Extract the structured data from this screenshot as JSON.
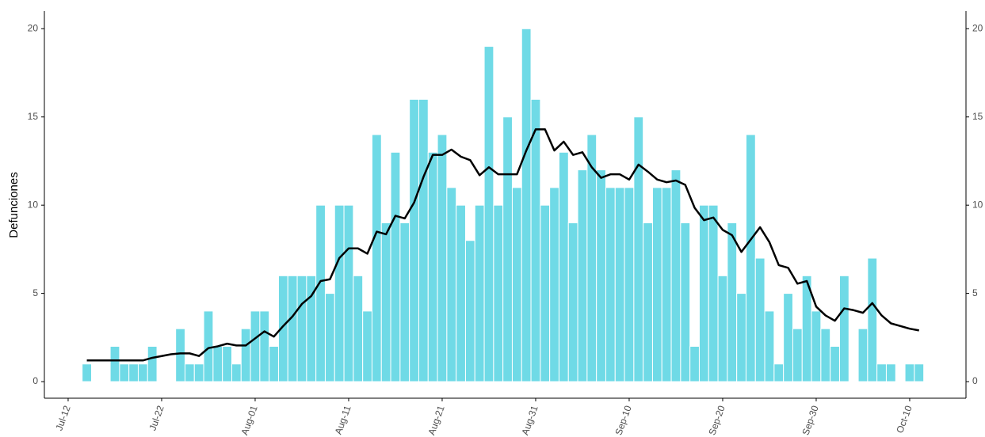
{
  "chart_data": {
    "type": "bar",
    "y_label": "Defunciones",
    "categories": [
      "Jul-12",
      null,
      null,
      null,
      null,
      null,
      null,
      null,
      null,
      null,
      "Jul-22",
      null,
      null,
      null,
      null,
      null,
      null,
      null,
      null,
      null,
      "Aug-01",
      null,
      null,
      null,
      null,
      null,
      null,
      null,
      null,
      null,
      "Aug-11",
      null,
      null,
      null,
      null,
      null,
      null,
      null,
      null,
      null,
      "Aug-21",
      null,
      null,
      null,
      null,
      null,
      null,
      null,
      null,
      null,
      "Aug-31",
      null,
      null,
      null,
      null,
      null,
      null,
      null,
      null,
      null,
      "Sep-10",
      null,
      null,
      null,
      null,
      null,
      null,
      null,
      null,
      null,
      "Sep-20",
      null,
      null,
      null,
      null,
      null,
      null,
      null,
      null,
      null,
      "Sep-30",
      null,
      null,
      null,
      null,
      null,
      null,
      null,
      null,
      null,
      "Oct-10",
      null
    ],
    "series": [
      {
        "type": "bar",
        "color": "#6fdae6",
        "values": [
          0,
          0,
          1,
          0,
          0,
          2,
          1,
          1,
          1,
          2,
          0,
          0,
          3,
          1,
          1,
          4,
          2,
          2,
          1,
          3,
          4,
          4,
          2,
          6,
          6,
          6,
          6,
          10,
          5,
          10,
          10,
          6,
          4,
          14,
          9,
          13,
          9,
          16,
          16,
          13,
          14,
          11,
          10,
          8,
          10,
          19,
          10,
          15,
          11,
          20,
          16,
          10,
          11,
          13,
          9,
          12,
          14,
          12,
          11,
          11,
          11,
          15,
          9,
          11,
          11,
          12,
          9,
          2,
          10,
          10,
          6,
          9,
          5,
          14,
          7,
          4,
          1,
          5,
          3,
          6,
          4,
          3,
          2,
          6,
          0,
          3,
          7,
          1,
          1,
          0,
          1,
          1
        ]
      },
      {
        "type": "line",
        "color": "#000000",
        "values": [
          null,
          null,
          1.2,
          1.2,
          1.2,
          1.2,
          1.2,
          1.2,
          1.2,
          1.35,
          1.45,
          1.55,
          1.6,
          1.6,
          1.45,
          1.9,
          2.0,
          2.15,
          2.05,
          2.05,
          2.45,
          2.85,
          2.55,
          3.15,
          3.7,
          4.4,
          4.85,
          5.7,
          5.8,
          7.0,
          7.55,
          7.55,
          7.25,
          8.5,
          8.35,
          9.4,
          9.25,
          10.15,
          11.6,
          12.85,
          12.85,
          13.15,
          12.75,
          12.55,
          11.7,
          12.15,
          11.75,
          11.75,
          11.75,
          13.1,
          14.3,
          14.3,
          13.1,
          13.6,
          12.85,
          13.0,
          12.15,
          11.55,
          11.75,
          11.75,
          11.45,
          12.3,
          11.9,
          11.45,
          11.3,
          11.4,
          11.15,
          9.85,
          9.15,
          9.3,
          8.6,
          8.3,
          7.35,
          8.05,
          8.75,
          7.9,
          6.6,
          6.45,
          5.55,
          5.7,
          4.25,
          3.75,
          3.45,
          4.15,
          4.05,
          3.9,
          4.45,
          3.75,
          3.3,
          3.15,
          3.0,
          2.9
        ]
      }
    ],
    "ylim": [
      -0.94,
      21
    ],
    "yticks": [
      0,
      5,
      10,
      15,
      20
    ],
    "y2lim": [
      -0.94,
      21
    ],
    "y2ticks": [
      0,
      5,
      10,
      15,
      20
    ],
    "grid": false
  }
}
